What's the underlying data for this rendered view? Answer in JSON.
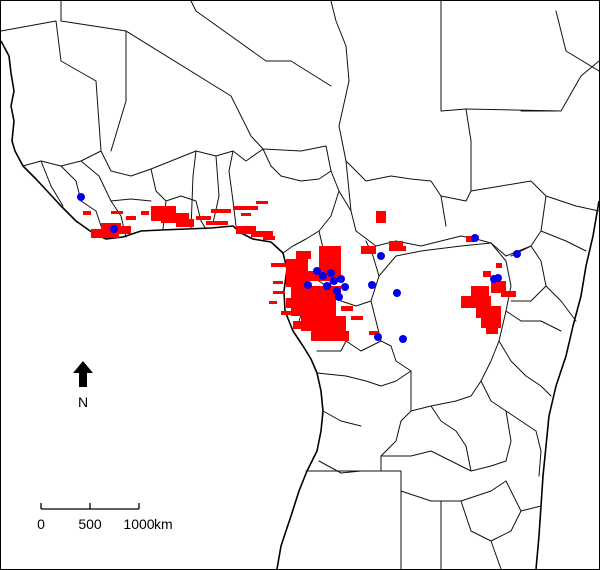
{
  "map": {
    "north_label": "N",
    "scale_bar": {
      "ticks": [
        "0",
        "500",
        "1000"
      ],
      "unit": "km"
    },
    "colors": {
      "suitable_area": "#ff0000",
      "occurrence_point": "#0000ee",
      "borders": "#111111"
    }
  }
}
